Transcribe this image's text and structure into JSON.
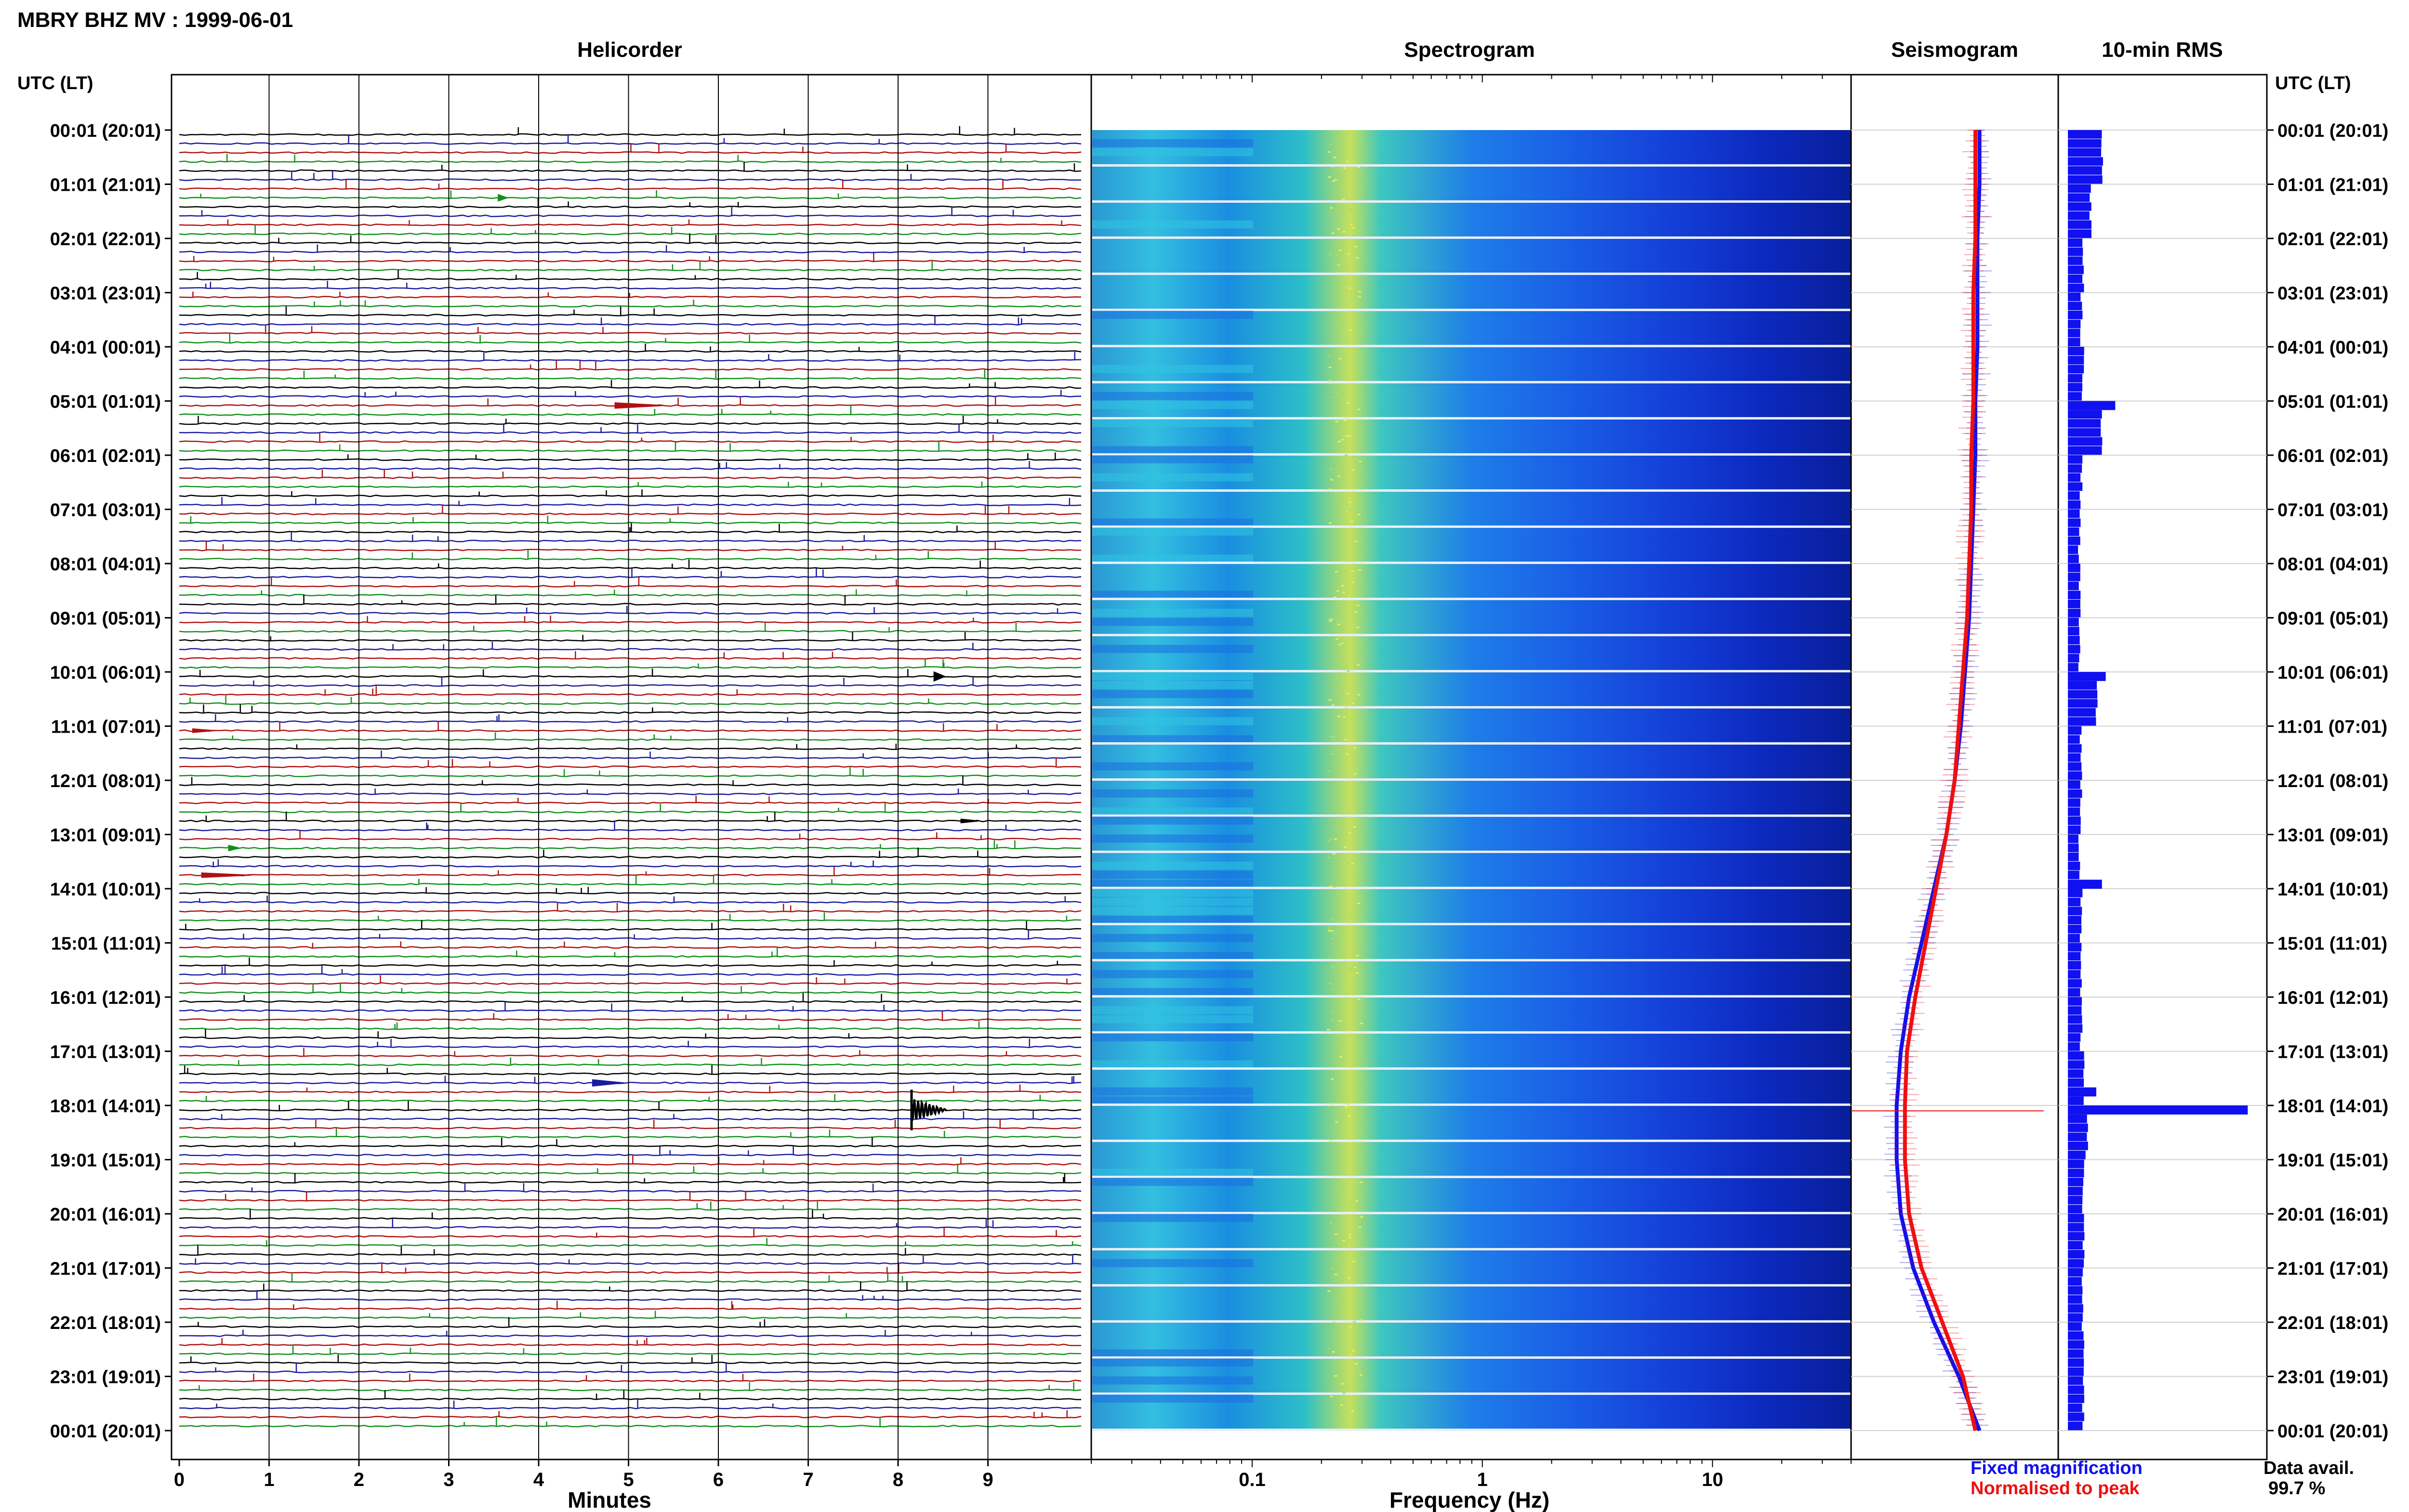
{
  "header": {
    "title": "MBRY BHZ MV : 1999-06-01"
  },
  "panels": {
    "helicorder": "Helicorder",
    "spectrogram": "Spectrogram",
    "seismogram": "Seismogram",
    "rms": "10-min RMS"
  },
  "time_axis": {
    "left_label": "UTC (LT)",
    "right_label": "UTC (LT)",
    "ticks": [
      "00:01 (20:01)",
      "01:01 (21:01)",
      "02:01 (22:01)",
      "03:01 (23:01)",
      "04:01 (00:01)",
      "05:01 (01:01)",
      "06:01 (02:01)",
      "07:01 (03:01)",
      "08:01 (04:01)",
      "09:01 (05:01)",
      "10:01 (06:01)",
      "11:01 (07:01)",
      "12:01 (08:01)",
      "13:01 (09:01)",
      "14:01 (10:01)",
      "15:01 (11:01)",
      "16:01 (12:01)",
      "17:01 (13:01)",
      "18:01 (14:01)",
      "19:01 (15:01)",
      "20:01 (16:01)",
      "21:01 (17:01)",
      "22:01 (18:01)",
      "23:01 (19:01)",
      "00:01 (20:01)"
    ]
  },
  "legend": {
    "fixed": "Fixed magnification",
    "normalised": "Normalised to peak",
    "fixed_color": "#1010ee",
    "normalised_color": "#ee1010"
  },
  "availability": {
    "label": "Data avail.",
    "value": "99.7 %"
  },
  "colors": {
    "trace_cycle": [
      "#000000",
      "#1a1aa0",
      "#b01010",
      "#10901a"
    ],
    "rms_bar": "#1010f0"
  },
  "chart_data": [
    {
      "type": "line",
      "title": "Helicorder",
      "xlabel": "Minutes",
      "x_ticks": [
        0,
        1,
        2,
        3,
        4,
        5,
        6,
        7,
        8,
        9
      ],
      "xlim": [
        0,
        10
      ],
      "rows_per_hour": 6,
      "hours": 24,
      "events": [
        {
          "hour": 1,
          "row": 1,
          "minute": 3.55,
          "amp": 0.35,
          "dur": 0.1,
          "color_index": 0
        },
        {
          "hour": 5,
          "row": 0,
          "minute": 4.85,
          "amp": 0.3,
          "dur": 0.55,
          "color_index": 2
        },
        {
          "hour": 10,
          "row": 0,
          "minute": 8.4,
          "amp": 0.5,
          "dur": 0.12,
          "color_index": 2
        },
        {
          "hour": 11,
          "row": 0,
          "minute": 0.15,
          "amp": 0.2,
          "dur": 0.25,
          "color_index": 1
        },
        {
          "hour": 12,
          "row": 4,
          "minute": 8.7,
          "amp": 0.2,
          "dur": 0.2,
          "color_index": 0
        },
        {
          "hour": 13,
          "row": 1,
          "minute": 0.55,
          "amp": 0.3,
          "dur": 0.12,
          "color_index": 1
        },
        {
          "hour": 13,
          "row": 4,
          "minute": 0.25,
          "amp": 0.25,
          "dur": 0.55,
          "color_index": 1
        },
        {
          "hour": 17,
          "row": 3,
          "minute": 4.6,
          "amp": 0.35,
          "dur": 0.35,
          "color_index": 1
        },
        {
          "hour": 18,
          "row": 0,
          "minute": 8.15,
          "amp": 5.0,
          "dur": 0.4,
          "color_index": 0
        }
      ]
    },
    {
      "type": "heatmap",
      "title": "Spectrogram",
      "xlabel": "Frequency (Hz)",
      "x_scale": "log",
      "x_ticks": [
        0.1,
        1,
        10
      ],
      "x_tick_labels": [
        "0.1",
        "1",
        "10"
      ],
      "xlim": [
        0.02,
        40
      ],
      "peak_frequency_hz": 0.25,
      "upper_limit_hz": 40
    },
    {
      "type": "line",
      "title": "Seismogram",
      "series": [
        {
          "name": "Fixed magnification",
          "values": [
            0.62,
            0.62,
            0.61,
            0.61,
            0.61,
            0.6,
            0.6,
            0.59,
            0.58,
            0.57,
            0.55,
            0.53,
            0.5,
            0.46,
            0.4,
            0.34,
            0.28,
            0.24,
            0.22,
            0.22,
            0.24,
            0.3,
            0.4,
            0.52,
            0.62
          ]
        },
        {
          "name": "Normalised to peak",
          "values": [
            0.6,
            0.6,
            0.6,
            0.59,
            0.59,
            0.59,
            0.58,
            0.58,
            0.57,
            0.56,
            0.54,
            0.52,
            0.5,
            0.46,
            0.41,
            0.36,
            0.31,
            0.27,
            0.26,
            0.26,
            0.28,
            0.34,
            0.44,
            0.54,
            0.6
          ]
        }
      ],
      "spike_hour": 18
    },
    {
      "type": "bar",
      "title": "10-min RMS",
      "values": [
        0.18,
        0.12,
        0.08,
        0.07,
        0.08,
        0.18,
        0.07,
        0.06,
        0.06,
        0.06,
        0.15,
        0.07,
        0.07,
        0.06,
        0.07,
        0.07,
        0.07,
        0.08,
        0.1,
        0.08,
        0.08,
        0.08,
        0.08,
        0.08
      ],
      "peaks": [
        {
          "hour": 5,
          "row": 0,
          "value": 0.25
        },
        {
          "hour": 10,
          "row": 0,
          "value": 0.2
        },
        {
          "hour": 13,
          "row": 5,
          "value": 0.18
        },
        {
          "hour": 17,
          "row": 4,
          "value": 0.15
        },
        {
          "hour": 18,
          "row": 0,
          "value": 0.95
        }
      ],
      "xlim": [
        0,
        1
      ]
    }
  ]
}
